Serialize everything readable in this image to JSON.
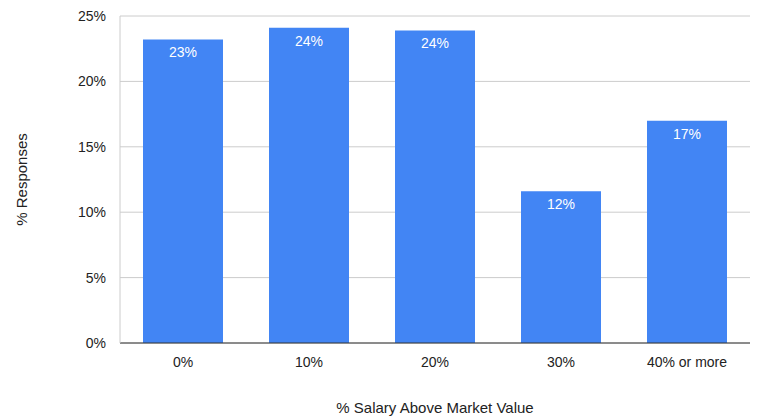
{
  "chart_data": {
    "type": "bar",
    "x_label": "% Salary Above Market Value",
    "y_label": "% Responses",
    "categories": [
      "0%",
      "10%",
      "20%",
      "30%",
      "40% or more"
    ],
    "values": [
      23.2,
      24.1,
      23.9,
      11.6,
      17.0
    ],
    "value_labels": [
      "23%",
      "24%",
      "24%",
      "12%",
      "17%"
    ],
    "color": "#4285f4",
    "ylim": [
      0,
      25
    ],
    "yticks": [
      {
        "value": 0,
        "label": "0%"
      },
      {
        "value": 5,
        "label": "5%"
      },
      {
        "value": 10,
        "label": "10%"
      },
      {
        "value": 15,
        "label": "15%"
      },
      {
        "value": 20,
        "label": "20%"
      },
      {
        "value": 25,
        "label": "25%"
      }
    ],
    "grid": true,
    "data_labels": true
  }
}
